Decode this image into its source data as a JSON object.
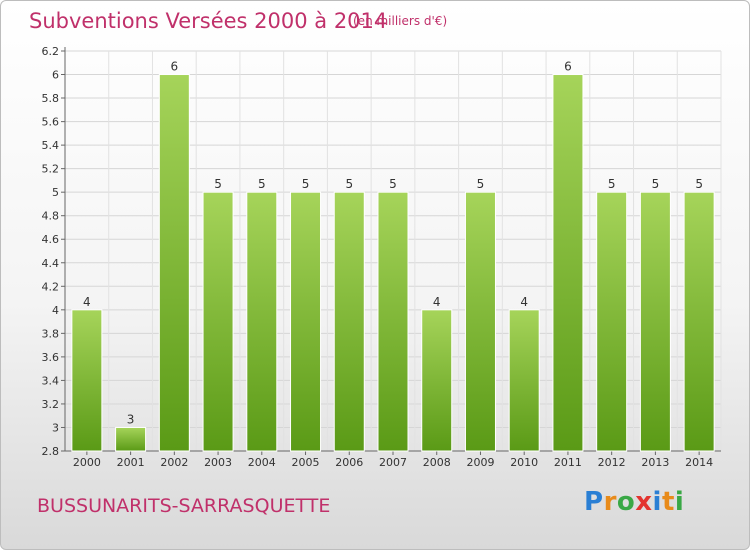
{
  "header": {
    "title": "Subventions Versées 2000 à 2014",
    "subtitle": "(en milliers d'€)"
  },
  "footer": {
    "town": "BUSSUNARITS-SARRASQUETTE",
    "logo_letters": [
      "P",
      "r",
      "o",
      "x",
      "i",
      "t",
      "i"
    ],
    "logo_colors": [
      "#2a7fd4",
      "#e88b1a",
      "#39a845",
      "#e3342f",
      "#2a7fd4",
      "#e88b1a",
      "#39a845"
    ]
  },
  "colors": {
    "bar_light": "#a6d45a",
    "bar_dark": "#5a9a16",
    "text_accent": "#c0306a"
  },
  "chart_data": {
    "type": "bar",
    "title": "Subventions Versées 2000 à 2014",
    "subtitle": "(en milliers d'€)",
    "categories": [
      "2000",
      "2001",
      "2002",
      "2003",
      "2004",
      "2005",
      "2006",
      "2007",
      "2008",
      "2009",
      "2010",
      "2011",
      "2012",
      "2013",
      "2014"
    ],
    "values": [
      4,
      3,
      6,
      5,
      5,
      5,
      5,
      5,
      4,
      5,
      4,
      6,
      5,
      5,
      5
    ],
    "data_labels": [
      "4",
      "3",
      "6",
      "5",
      "5",
      "5",
      "5",
      "5",
      "4",
      "5",
      "4",
      "6",
      "5",
      "5",
      "5"
    ],
    "y_ticks": [
      "2.8",
      "3",
      "3.2",
      "3.4",
      "3.6",
      "3.8",
      "4",
      "4.2",
      "4.4",
      "4.6",
      "4.8",
      "5",
      "5.2",
      "5.4",
      "5.6",
      "5.8",
      "6",
      "6.2"
    ],
    "ylim": [
      2.8,
      6.2
    ],
    "grid": true,
    "legend": "none"
  }
}
